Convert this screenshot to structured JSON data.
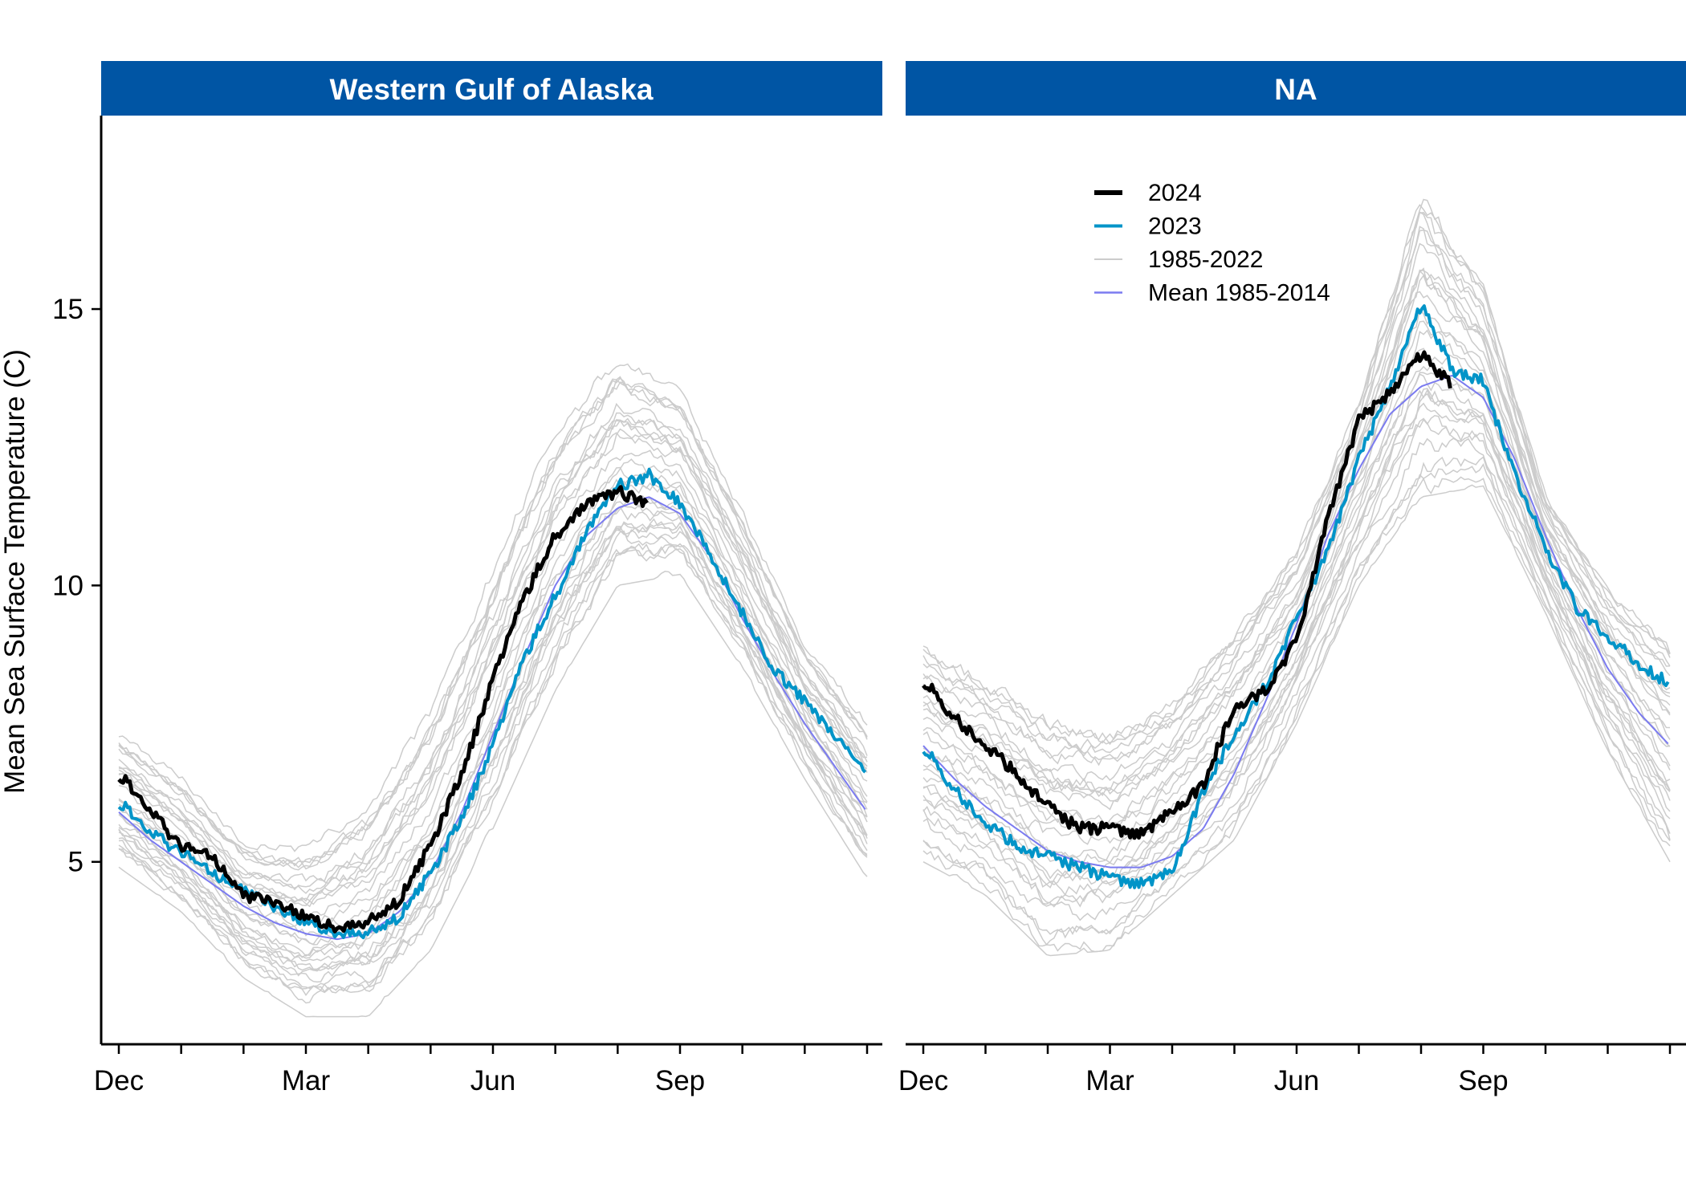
{
  "colors": {
    "strip": "#0055A4",
    "y2024": "#000000",
    "y2023": "#0094C8",
    "historic": "#CCCCCC",
    "mean": "#7B7BF0"
  },
  "chart_data": [
    {
      "type": "line",
      "panel_title": "Western Gulf of Alaska",
      "xlabel": "",
      "ylabel": "Mean Sea Surface Temperature (C)",
      "x_unit": "months since Dec 1",
      "xlim": [
        0,
        12
      ],
      "ylim": [
        1.7,
        18.5
      ],
      "x_ticks": [
        0,
        3,
        6,
        9
      ],
      "x_tick_labels": [
        "Dec",
        "Mar",
        "Jun",
        "Sep"
      ],
      "y_ticks": [
        5,
        10,
        15
      ],
      "y_tick_labels": [
        "5",
        "10",
        "15"
      ],
      "grid": false,
      "legend": "none",
      "series": [
        {
          "name": "2024",
          "x": [
            0,
            0.5,
            1,
            1.5,
            2,
            2.5,
            3,
            3.5,
            4,
            4.5,
            5,
            5.5,
            6,
            6.5,
            7,
            7.5,
            8,
            8.5
          ],
          "y": [
            6.6,
            5.9,
            5.3,
            5.1,
            4.4,
            4.3,
            4.0,
            3.8,
            3.9,
            4.3,
            5.3,
            6.6,
            8.3,
            9.8,
            10.9,
            11.5,
            11.7,
            11.5
          ]
        },
        {
          "name": "2023",
          "x": [
            0,
            0.5,
            1,
            1.5,
            2,
            2.5,
            3,
            3.5,
            4,
            4.5,
            5,
            5.5,
            6,
            6.5,
            7,
            7.5,
            8,
            8.5,
            9,
            9.5,
            10,
            10.5,
            11,
            11.5,
            12
          ],
          "y": [
            6.1,
            5.5,
            5.2,
            4.8,
            4.5,
            4.2,
            3.9,
            3.7,
            3.7,
            4.0,
            4.8,
            5.8,
            7.1,
            8.7,
            9.8,
            11.0,
            11.8,
            12.0,
            11.5,
            10.5,
            9.5,
            8.5,
            7.9,
            7.3,
            6.6
          ]
        },
        {
          "name": "Mean 1985-2014",
          "x": [
            0,
            0.5,
            1,
            1.5,
            2,
            2.5,
            3,
            3.5,
            4,
            4.5,
            5,
            5.5,
            6,
            6.5,
            7,
            7.5,
            8,
            8.5,
            9,
            9.5,
            10,
            10.5,
            11,
            11.5,
            12
          ],
          "y": [
            5.9,
            5.4,
            5.0,
            4.6,
            4.2,
            3.9,
            3.7,
            3.6,
            3.7,
            4.1,
            4.8,
            5.9,
            7.3,
            8.7,
            10.0,
            10.9,
            11.4,
            11.6,
            11.3,
            10.5,
            9.4,
            8.4,
            7.5,
            6.7,
            5.9
          ]
        },
        {
          "name": "1985-2022",
          "x": [
            0,
            1,
            2,
            3,
            4,
            5,
            6,
            7,
            8,
            9,
            10,
            11,
            12
          ],
          "y_min": [
            4.9,
            4.1,
            2.9,
            2.2,
            2.2,
            3.4,
            5.6,
            8.1,
            10.0,
            10.2,
            8.5,
            6.5,
            4.7
          ],
          "y_max": [
            7.4,
            6.6,
            5.4,
            5.3,
            6.1,
            7.8,
            10.4,
            12.9,
            14.2,
            13.6,
            11.4,
            9.0,
            7.6
          ]
        }
      ]
    },
    {
      "type": "line",
      "panel_title": "NA",
      "xlabel": "",
      "ylabel": "",
      "x_unit": "months since Dec 1",
      "xlim": [
        0,
        12
      ],
      "ylim": [
        1.7,
        18.5
      ],
      "x_ticks": [
        0,
        3,
        6,
        9
      ],
      "x_tick_labels": [
        "Dec",
        "Mar",
        "Jun",
        "Sep"
      ],
      "grid": false,
      "legend": "top-center",
      "legend_entries": [
        "2024",
        "2023",
        "1985-2022",
        "Mean 1985-2014"
      ],
      "series": [
        {
          "name": "2024",
          "x": [
            0,
            0.5,
            1,
            1.5,
            2,
            2.5,
            3,
            3.5,
            4,
            4.5,
            5,
            5.5,
            6,
            6.5,
            7,
            7.5,
            8,
            8.5
          ],
          "y": [
            8.3,
            7.6,
            7.1,
            6.6,
            6.0,
            5.6,
            5.6,
            5.5,
            5.9,
            6.4,
            7.8,
            8.1,
            9.0,
            11.2,
            13.0,
            13.5,
            14.2,
            13.6
          ]
        },
        {
          "name": "2023",
          "x": [
            0,
            0.5,
            1,
            1.5,
            2,
            2.5,
            3,
            3.5,
            4,
            4.5,
            5,
            5.5,
            6,
            6.5,
            7,
            7.5,
            8,
            8.5,
            9,
            9.5,
            10,
            10.5,
            11,
            11.5,
            12
          ],
          "y": [
            7.1,
            6.3,
            5.7,
            5.3,
            5.1,
            4.9,
            4.7,
            4.6,
            4.8,
            6.3,
            7.3,
            8.2,
            9.4,
            10.6,
            12.3,
            13.6,
            15.1,
            13.9,
            13.7,
            12.0,
            10.7,
            9.6,
            9.1,
            8.6,
            8.2
          ]
        },
        {
          "name": "Mean 1985-2014",
          "x": [
            0,
            0.5,
            1,
            1.5,
            2,
            2.5,
            3,
            3.5,
            4,
            4.5,
            5,
            5.5,
            6,
            6.5,
            7,
            7.5,
            8,
            8.5,
            9,
            9.5,
            10,
            10.5,
            11,
            11.5,
            12
          ],
          "y": [
            7.1,
            6.5,
            6.0,
            5.6,
            5.2,
            5.0,
            4.9,
            4.9,
            5.1,
            5.6,
            6.6,
            7.9,
            9.3,
            10.9,
            12.1,
            13.1,
            13.6,
            13.8,
            13.4,
            12.3,
            10.9,
            9.6,
            8.5,
            7.7,
            7.1
          ]
        },
        {
          "name": "1985-2022",
          "x": [
            0,
            1,
            2,
            3,
            4,
            5,
            6,
            7,
            8,
            9,
            10,
            11,
            12
          ],
          "y_min": [
            5.0,
            4.4,
            3.3,
            3.4,
            4.4,
            5.4,
            7.5,
            10.0,
            11.6,
            11.8,
            9.5,
            7.0,
            5.0
          ],
          "y_max": [
            9.0,
            8.4,
            7.7,
            7.4,
            8.0,
            9.3,
            10.7,
            13.4,
            17.3,
            15.5,
            11.7,
            10.0,
            9.0
          ]
        }
      ]
    }
  ]
}
